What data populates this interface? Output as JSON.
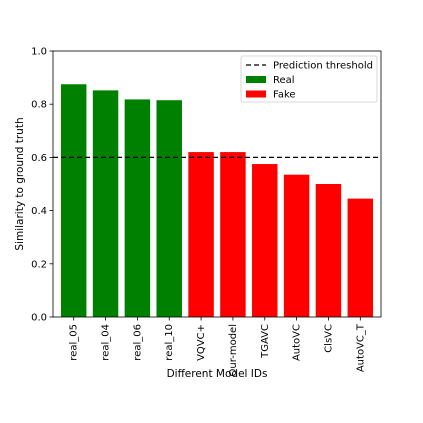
{
  "chart_data": {
    "type": "bar",
    "title": "",
    "xlabel": "Different Model IDs",
    "ylabel": "Similarity to ground truth",
    "ylim": [
      0.0,
      1.0
    ],
    "yticks": [
      "0.0",
      "0.2",
      "0.4",
      "0.6",
      "0.8",
      "1.0"
    ],
    "categories": [
      "real_05",
      "real_04",
      "real_06",
      "real_10",
      "VQVC+",
      "Our-model",
      "TGAVC",
      "AutoVC",
      "ClsVC",
      "AutoVC_T"
    ],
    "values": [
      0.875,
      0.852,
      0.818,
      0.815,
      0.62,
      0.62,
      0.575,
      0.535,
      0.5,
      0.445
    ],
    "labels": [
      "Real",
      "Real",
      "Real",
      "Real",
      "Fake",
      "Fake",
      "Fake",
      "Fake",
      "Fake",
      "Fake"
    ],
    "threshold": {
      "value": 0.6,
      "label": "Prediction threshold",
      "style": "dashed",
      "color": "#000000"
    },
    "legend": {
      "position": "top-right",
      "entries": [
        {
          "label": "Prediction threshold",
          "kind": "dashed-line",
          "color": "#000000"
        },
        {
          "label": "Real",
          "kind": "patch",
          "color": "#008000"
        },
        {
          "label": "Fake",
          "kind": "patch",
          "color": "#ff0000"
        }
      ]
    },
    "colors": {
      "Real": "#008000",
      "Fake": "#ff0000"
    },
    "grid": false
  }
}
